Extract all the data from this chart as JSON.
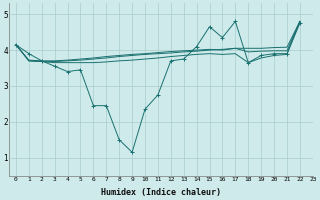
{
  "xlabel": "Humidex (Indice chaleur)",
  "xlim": [
    -0.5,
    23
  ],
  "ylim": [
    0.5,
    5.3
  ],
  "yticks": [
    1,
    2,
    3,
    4,
    5
  ],
  "xticks": [
    0,
    1,
    2,
    3,
    4,
    5,
    6,
    7,
    8,
    9,
    10,
    11,
    12,
    13,
    14,
    15,
    16,
    17,
    18,
    19,
    20,
    21,
    22,
    23
  ],
  "bg_color": "#ceeaea",
  "grid_color": "#aacccc",
  "line_color": "#1a7070",
  "series_with_markers": [
    [
      4.15,
      3.9,
      3.7,
      3.55,
      3.4,
      3.45,
      2.45,
      2.45,
      1.5,
      1.15,
      2.35,
      2.75,
      3.7,
      3.75,
      4.1,
      4.65,
      4.35,
      4.8,
      3.65,
      3.85,
      3.9,
      3.9,
      4.75,
      null
    ]
  ],
  "series_lines": [
    [
      4.15,
      3.7,
      3.68,
      3.68,
      3.7,
      3.72,
      3.75,
      3.78,
      3.82,
      3.85,
      3.88,
      3.9,
      3.92,
      3.95,
      3.97,
      4.0,
      4.02,
      4.05,
      4.05,
      4.05,
      4.07,
      4.08,
      4.8,
      null
    ],
    [
      4.15,
      3.72,
      3.7,
      3.7,
      3.72,
      3.75,
      3.78,
      3.82,
      3.85,
      3.88,
      3.9,
      3.93,
      3.96,
      3.98,
      4.0,
      4.02,
      4.0,
      4.05,
      3.95,
      3.97,
      3.98,
      3.98,
      4.8,
      null
    ],
    [
      4.15,
      3.7,
      3.68,
      3.65,
      3.65,
      3.65,
      3.65,
      3.67,
      3.7,
      3.72,
      3.75,
      3.78,
      3.82,
      3.85,
      3.88,
      3.9,
      3.88,
      3.9,
      3.65,
      3.78,
      3.85,
      3.88,
      4.8,
      null
    ]
  ]
}
